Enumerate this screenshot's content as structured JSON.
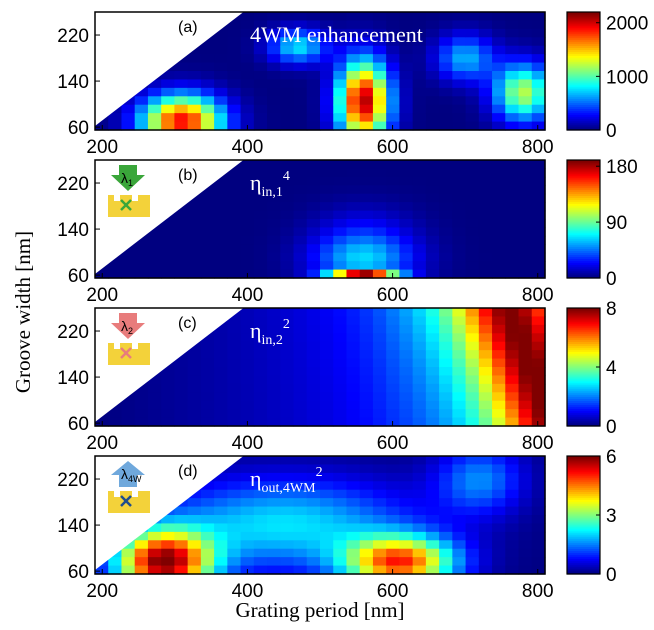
{
  "chart_data": {
    "type": "heatmap",
    "xlabel": "Grating period [nm]",
    "ylabel": "Groove width [nm]",
    "xlim": [
      190,
      810
    ],
    "ylim": [
      55,
      260
    ],
    "xticks": [
      "200",
      "400",
      "600",
      "800"
    ],
    "yticks": [
      "60",
      "140",
      "220"
    ],
    "colormap": "jet",
    "panels": [
      {
        "label": "(a)",
        "title": "4WM enhancement",
        "title_main": "4WM enhancement",
        "title_sub": "",
        "title_sup": "",
        "cbar_range": [
          0,
          2200
        ],
        "cbar_ticks": [
          "0",
          "1000",
          "2000"
        ],
        "peaks": [
          {
            "x": 310,
            "y": 70,
            "value": 1800
          },
          {
            "x": 560,
            "y": 110,
            "value": 2100
          },
          {
            "x": 780,
            "y": 120,
            "value": 1200
          }
        ],
        "inset": null
      },
      {
        "label": "(b)",
        "title": "η in,1 4",
        "title_main": "η",
        "title_sub": "in,1",
        "title_sup": "4",
        "cbar_range": [
          0,
          190
        ],
        "cbar_ticks": [
          "0",
          "90",
          "180"
        ],
        "peaks": [
          {
            "x": 560,
            "y": 60,
            "value": 180
          }
        ],
        "inset": {
          "symbol": "λ",
          "subscript": "1",
          "arrow_color": "#3aa63a",
          "cross_color": "#3aa63a",
          "arrow_dir": "down"
        }
      },
      {
        "label": "(c)",
        "title": "η in,2 2",
        "title_main": "η",
        "title_sub": "in,2",
        "title_sup": "2",
        "cbar_range": [
          0,
          8
        ],
        "cbar_ticks": [
          "0",
          "4",
          "8"
        ],
        "peaks": [
          {
            "x": 800,
            "y": 60,
            "value": 8
          }
        ],
        "inset": {
          "symbol": "λ",
          "subscript": "2",
          "arrow_color": "#e87c7c",
          "cross_color": "#e87c7c",
          "arrow_dir": "down"
        }
      },
      {
        "label": "(d)",
        "title": "η out,4WM 2",
        "title_main": "η",
        "title_sub": "out,4WM",
        "title_sup": "2",
        "cbar_range": [
          0,
          6
        ],
        "cbar_ticks": [
          "0",
          "3",
          "6"
        ],
        "peaks": [
          {
            "x": 280,
            "y": 70,
            "value": 6
          },
          {
            "x": 600,
            "y": 70,
            "value": 5
          }
        ],
        "inset": {
          "symbol": "λ",
          "subscript": "4W",
          "arrow_color": "#6fa8dc",
          "cross_color": "#1f4e8c",
          "arrow_dir": "up"
        }
      }
    ]
  }
}
